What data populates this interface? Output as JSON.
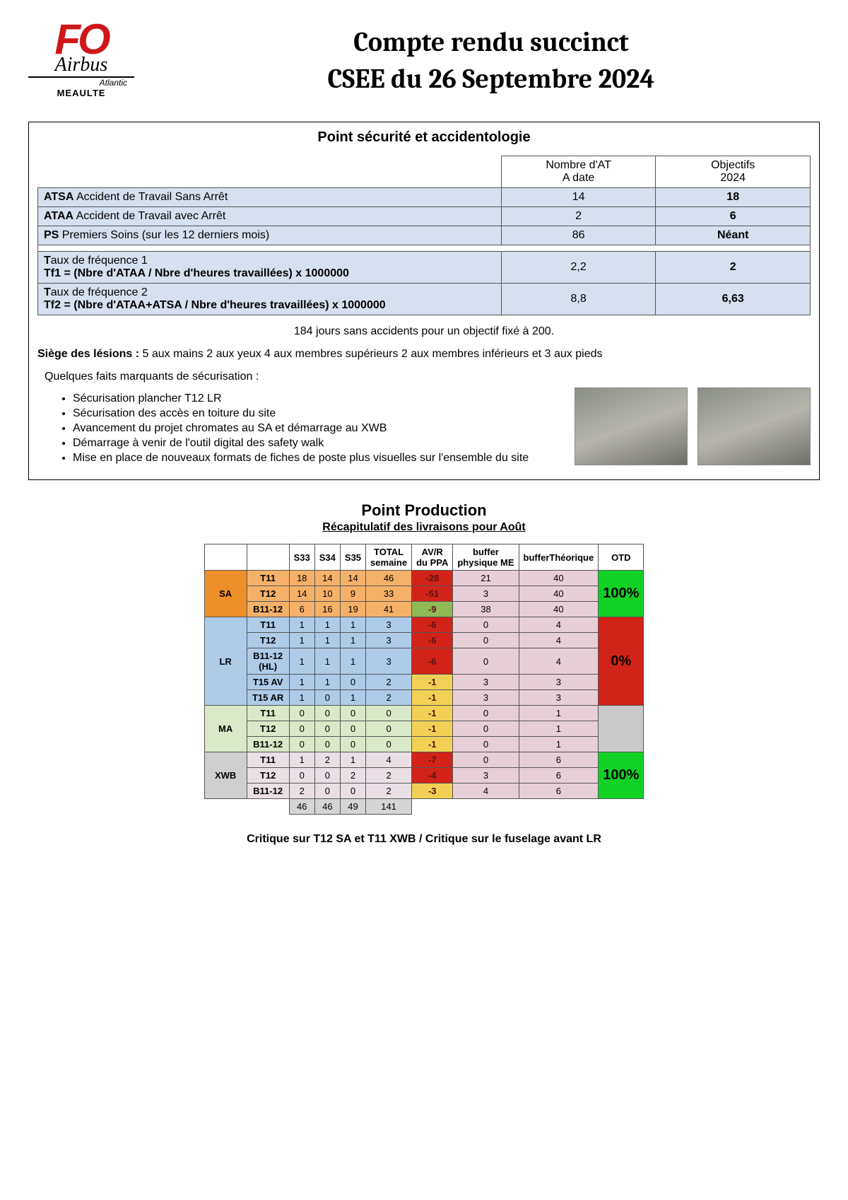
{
  "logo": {
    "fo": "FO",
    "airbus": "Airbus",
    "atlantic": "Atlantic",
    "meaulte": "MEAULTE"
  },
  "title": {
    "line1": "Compte rendu succinct",
    "line2": "CSEE du 26 Septembre 2024"
  },
  "safety": {
    "section_title": "Point sécurité et accidentologie",
    "headers": {
      "nb": "Nombre d'AT\nA date",
      "obj": "Objectifs\n2024"
    },
    "rows": [
      {
        "label_bold": "ATSA",
        "label_rest": " Accident de Travail Sans Arrêt",
        "nb": "14",
        "obj": "18"
      },
      {
        "label_bold": "ATAA",
        "label_rest": " Accident de Travail avec Arrêt",
        "nb": "2",
        "obj": "6"
      },
      {
        "label_bold": "PS",
        "label_rest": " Premiers Soins (sur les 12 derniers mois)",
        "nb": "86",
        "obj": "Néant"
      }
    ],
    "freq": [
      {
        "l1": "Taux de fréquence 1",
        "l2": "Tf1 = (Nbre d'ATAA / Nbre d'heures travaillées) x 1000000",
        "nb": "2,2",
        "obj": "2"
      },
      {
        "l1": "Taux de fréquence 2",
        "l2": "Tf2 = (Nbre d'ATAA+ATSA / Nbre d'heures travaillées) x 1000000",
        "nb": "8,8",
        "obj": "6,63"
      }
    ],
    "days_note": "184 jours sans accidents pour un objectif fixé à 200.",
    "lesions_label": "Siège des lésions :",
    "lesions_text": " 5 aux mains   2 aux yeux    4 aux membres supérieurs    2   aux   membres   inférieurs et 3 aux pieds",
    "facts_intro": "Quelques faits marquants de sécurisation :",
    "bullets": [
      "Sécurisation plancher T12 LR",
      "Sécurisation des accès en toiture du site",
      "Avancement du projet chromates au SA et démarrage au XWB",
      "Démarrage à venir de l'outil digital des safety walk",
      "Mise en place de nouveaux formats de fiches de poste plus visuelles sur l'ensemble du site"
    ]
  },
  "production": {
    "title": "Point Production",
    "subtitle": "Récapitulatif des livraisons pour Août",
    "columns": [
      "",
      "",
      "S33",
      "S34",
      "S35",
      "TOTAL semaine",
      "AV/R du PPA",
      "buffer physique ME",
      "bufferThéorique",
      "OTD"
    ],
    "groups": [
      {
        "name": "SA",
        "group_bg": "#ef8f2a",
        "row_bg": "#f6b169",
        "otd": {
          "text": "100%",
          "bg": "#11d224",
          "color": "#000000"
        },
        "rows": [
          {
            "label": "T11",
            "s33": "18",
            "s34": "14",
            "s35": "14",
            "tot": "46",
            "avr": "-28",
            "avr_bg": "#d22319",
            "bufP": "21",
            "bufT": "40"
          },
          {
            "label": "T12",
            "s33": "14",
            "s34": "10",
            "s35": "9",
            "tot": "33",
            "avr": "-51",
            "avr_bg": "#d22319",
            "bufP": "3",
            "bufT": "40"
          },
          {
            "label": "B11-12",
            "s33": "6",
            "s34": "16",
            "s35": "19",
            "tot": "41",
            "avr": "-9",
            "avr_bg": "#8fb955",
            "bufP": "38",
            "bufT": "40"
          }
        ]
      },
      {
        "name": "LR",
        "group_bg": "#aecbe8",
        "row_bg": "#aecbe8",
        "otd": {
          "text": "0%",
          "bg": "#d22319",
          "color": "#000000"
        },
        "rows": [
          {
            "label": "T11",
            "s33": "1",
            "s34": "1",
            "s35": "1",
            "tot": "3",
            "avr": "-6",
            "avr_bg": "#d22319",
            "bufP": "0",
            "bufT": "4"
          },
          {
            "label": "T12",
            "s33": "1",
            "s34": "1",
            "s35": "1",
            "tot": "3",
            "avr": "-6",
            "avr_bg": "#d22319",
            "bufP": "0",
            "bufT": "4"
          },
          {
            "label": "B11-12 (HL)",
            "s33": "1",
            "s34": "1",
            "s35": "1",
            "tot": "3",
            "avr": "-6",
            "avr_bg": "#d22319",
            "bufP": "0",
            "bufT": "4"
          },
          {
            "label": "T15 AV",
            "s33": "1",
            "s34": "1",
            "s35": "0",
            "tot": "2",
            "avr": "-1",
            "avr_bg": "#f2d055",
            "bufP": "3",
            "bufT": "3"
          },
          {
            "label": "T15 AR",
            "s33": "1",
            "s34": "0",
            "s35": "1",
            "tot": "2",
            "avr": "-1",
            "avr_bg": "#f2d055",
            "bufP": "3",
            "bufT": "3"
          }
        ]
      },
      {
        "name": "MA",
        "group_bg": "#d9e9c9",
        "row_bg": "#d9e9c9",
        "otd": {
          "text": "",
          "bg": "#c9c9c9",
          "color": "#000000"
        },
        "rows": [
          {
            "label": "T11",
            "s33": "0",
            "s34": "0",
            "s35": "0",
            "tot": "0",
            "avr": "-1",
            "avr_bg": "#f2d055",
            "bufP": "0",
            "bufT": "1"
          },
          {
            "label": "T12",
            "s33": "0",
            "s34": "0",
            "s35": "0",
            "tot": "0",
            "avr": "-1",
            "avr_bg": "#f2d055",
            "bufP": "0",
            "bufT": "1"
          },
          {
            "label": "B11-12",
            "s33": "0",
            "s34": "0",
            "s35": "0",
            "tot": "0",
            "avr": "-1",
            "avr_bg": "#f2d055",
            "bufP": "0",
            "bufT": "1"
          }
        ]
      },
      {
        "name": "XWB",
        "group_bg": "#cfcfcf",
        "row_bg": "#e9dfe5",
        "otd": {
          "text": "100%",
          "bg": "#11d224",
          "color": "#000000"
        },
        "rows": [
          {
            "label": "T11",
            "s33": "1",
            "s34": "2",
            "s35": "1",
            "tot": "4",
            "avr": "-7",
            "avr_bg": "#d22319",
            "bufP": "0",
            "bufT": "6"
          },
          {
            "label": "T12",
            "s33": "0",
            "s34": "0",
            "s35": "2",
            "tot": "2",
            "avr": "-4",
            "avr_bg": "#d22319",
            "bufP": "3",
            "bufT": "6"
          },
          {
            "label": "B11-12",
            "s33": "2",
            "s34": "0",
            "s35": "0",
            "tot": "2",
            "avr": "-3",
            "avr_bg": "#f2d055",
            "bufP": "4",
            "bufT": "6"
          }
        ]
      }
    ],
    "totals": {
      "s33": "46",
      "s34": "46",
      "s35": "49",
      "tot": "141"
    },
    "buf_bg": "#e7cfd7",
    "tot_bg": "#d5d5d5"
  },
  "footer": "Critique sur T12 SA et T11 XWB / Critique sur le fuselage avant LR"
}
